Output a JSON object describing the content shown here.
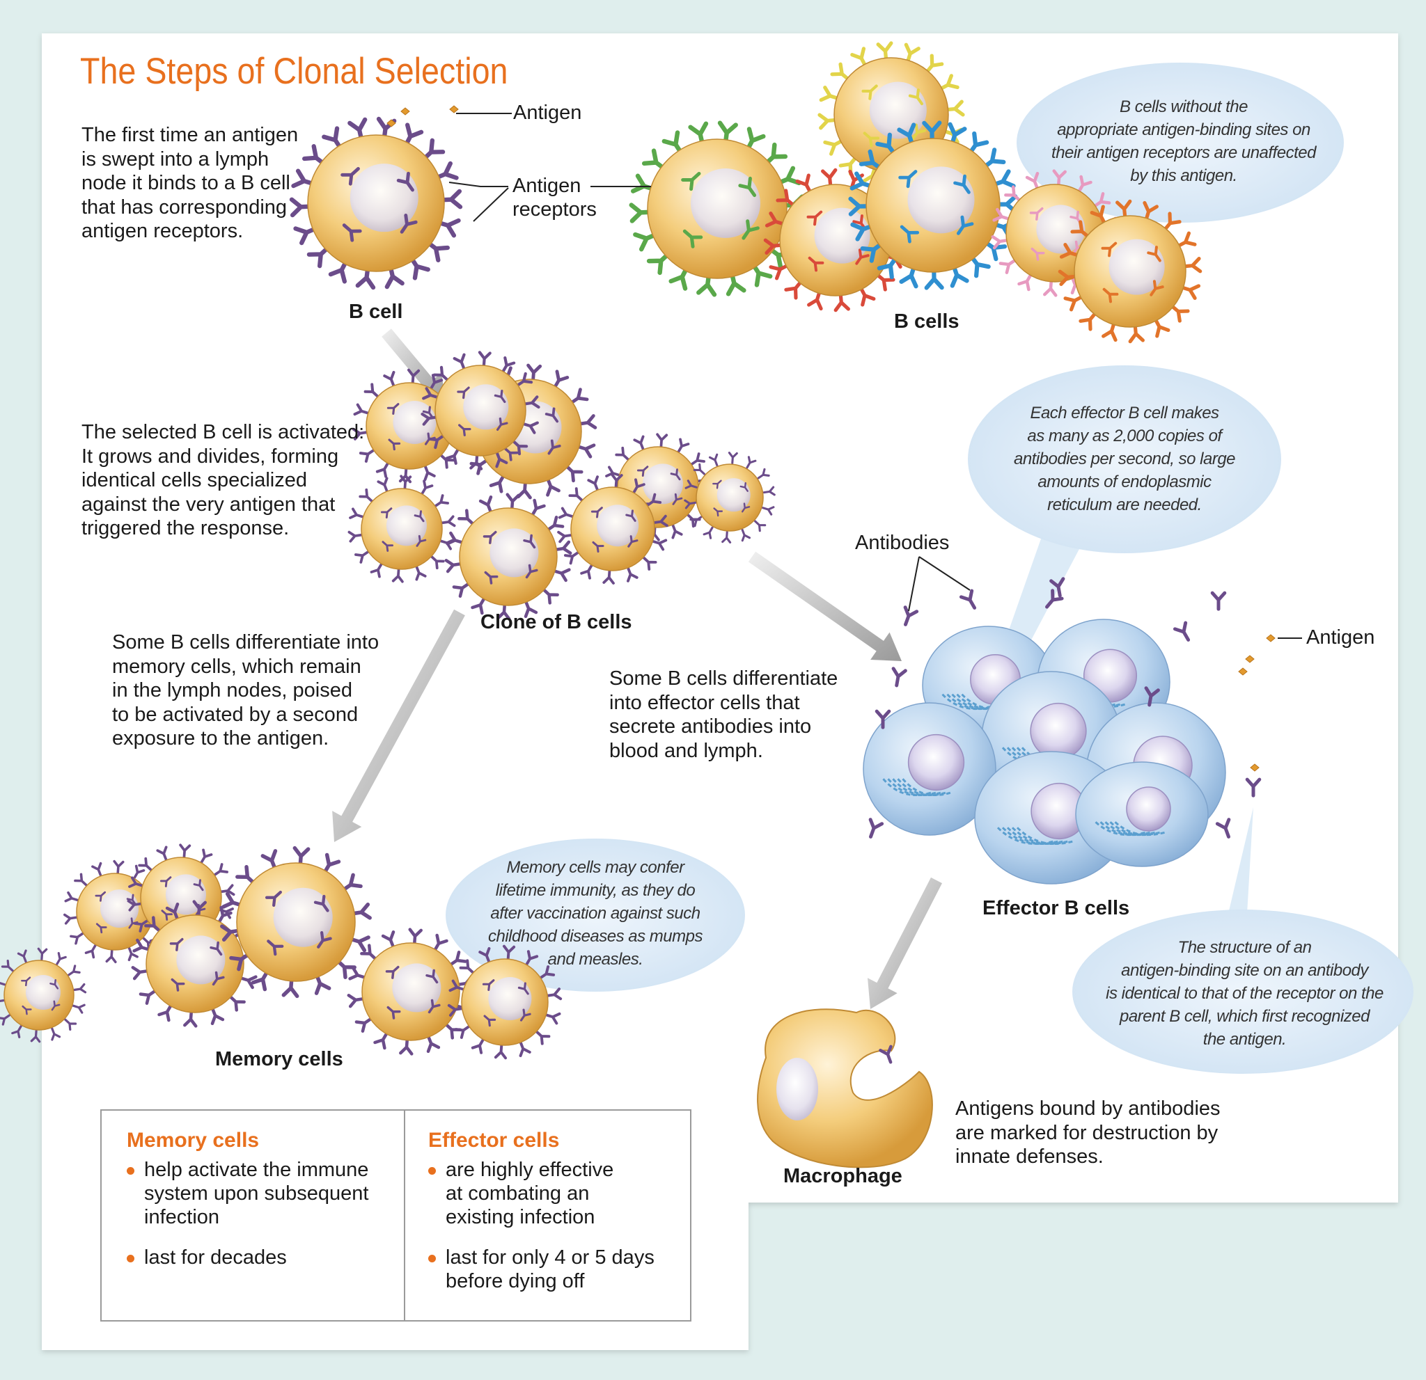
{
  "title": "The Steps of Clonal Selection",
  "labels": {
    "antigen_top": "Antigen",
    "antigen_receptors": "Antigen\nreceptors",
    "b_cell": "B cell",
    "b_cells": "B cells",
    "clone_of_b_cells": "Clone of B cells",
    "antibodies": "Antibodies",
    "antigen_right": "Antigen",
    "effector_b_cells": "Effector B cells",
    "memory_cells": "Memory cells",
    "macrophage": "Macrophage"
  },
  "texts": {
    "step1": "The first time an antigen\nis swept into a lymph\nnode it binds to a B cell\nthat has corresponding\nantigen receptors.",
    "step2": "The selected B cell is activated:\nIt grows and divides, forming\nidentical cells specialized\nagainst the very antigen that\ntriggered the response.",
    "step3_memory": "Some B cells differentiate into\nmemory cells, which remain\nin the lymph nodes, poised\nto be activated by a second\nexposure to the antigen.",
    "step3_effector": "Some B cells differentiate\ninto effector cells that\nsecrete antibodies into\nblood and lymph.",
    "step4": "Antigens bound by antibodies\nare marked for destruction by\ninnate defenses."
  },
  "bubbles": {
    "unaffected": "B cells without the\nappropriate antigen-binding sites on\ntheir antigen receptors are unaffected\nby this antigen.",
    "effector_rate": "Each effector B cell makes\nas many as 2,000 copies of\nantibodies per second, so large\namounts of endoplasmic\nreticulum are needed.",
    "memory": "Memory cells may confer\nlifetime immunity, as they do\nafter vaccination against such\nchildhood diseases as mumps\nand measles.",
    "structure": "The structure of an\nantigen-binding site on an antibody\nis identical to that of the receptor on the\nparent B cell, which first recognized\nthe antigen."
  },
  "legend": {
    "memory_heading": "Memory cells",
    "memory_items": [
      "help activate the immune\nsystem upon subsequent\ninfection",
      "last for decades"
    ],
    "effector_heading": "Effector cells",
    "effector_items": [
      "are highly effective\nat combating an\nexisting infection",
      "last for only 4 or 5 days\nbefore dying off"
    ]
  },
  "colors": {
    "accent": "#e8701e",
    "receptor_purple": "#6b4c8a",
    "cell_body": "#f1c66e",
    "effector_blue": "#a9c9e8",
    "bubble_blue": "#dbeaf7",
    "background": "#dfeeed"
  }
}
